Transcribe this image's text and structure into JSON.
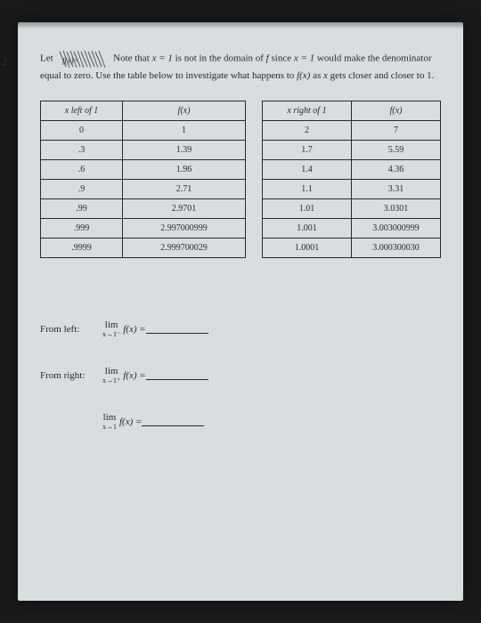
{
  "question_number": "2.",
  "intro": {
    "let": "Let ",
    "note": " Note that ",
    "eq1": "x = 1",
    "mid1": " is not in the domain of ",
    "f": "f",
    "since": " since ",
    "eq2": "x = 1",
    "mid2": " would make the denominator equal to zero.  Use the table below to investigate what happens to ",
    "fxexpr": "f(x)",
    "mid3": " as ",
    "xvar": "x",
    "mid4": " gets closer and closer to 1."
  },
  "table_left": {
    "header_x": "x left of 1",
    "header_fx": "f(x)",
    "rows": [
      [
        "0",
        "1"
      ],
      [
        ".3",
        "1.39"
      ],
      [
        ".6",
        "1.96"
      ],
      [
        ".9",
        "2.71"
      ],
      [
        ".99",
        "2.9701"
      ],
      [
        ".999",
        "2.997000999"
      ],
      [
        ".9999",
        "2.999700029"
      ]
    ]
  },
  "table_right": {
    "header_x": "x right of 1",
    "header_fx": "f(x)",
    "rows": [
      [
        "2",
        "7"
      ],
      [
        "1.7",
        "5.59"
      ],
      [
        "1.4",
        "4.36"
      ],
      [
        "1.1",
        "3.31"
      ],
      [
        "1.01",
        "3.0301"
      ],
      [
        "1.001",
        "3.003000999"
      ],
      [
        "1.0001",
        "3.000300030"
      ]
    ]
  },
  "limits": {
    "from_left": "From left:",
    "from_right": "From right:",
    "lim": "lim",
    "sub_left": "x→1⁻",
    "sub_right": "x→1⁺",
    "sub_both": "x→1",
    "fx": "f(x) =",
    "fx2": "f(x) ="
  },
  "colors": {
    "page_bg": "#d8dde0",
    "outer_bg": "#1a1a1a",
    "text": "#2a2a2a",
    "border": "#2a2a2a"
  }
}
